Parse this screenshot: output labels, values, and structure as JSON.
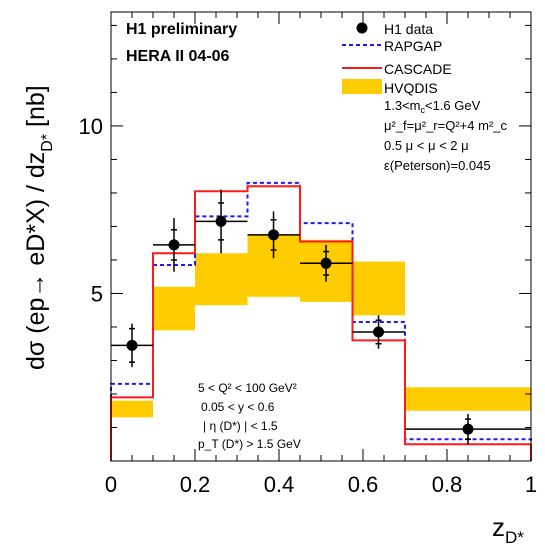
{
  "chart_data": {
    "type": "line",
    "xlabel_main": "z",
    "xlabel_sub": "D*",
    "ylabel_main": "dσ (ep→ eD*X) / dz",
    "ylabel_sub": "D*",
    "ylabel_unit": "[nb]",
    "xlim": [
      0,
      1
    ],
    "ylim": [
      0,
      13.4
    ],
    "x_major_ticks": [
      0,
      0.2,
      0.4,
      0.6,
      0.8,
      1
    ],
    "x_tick_labels": [
      "0",
      "0.2",
      "0.4",
      "0.6",
      "0.8",
      "1"
    ],
    "y_major_ticks": [
      5,
      10
    ],
    "y_tick_labels": [
      "5",
      "10"
    ],
    "bin_edges": [
      0,
      0.1,
      0.2,
      0.325,
      0.45,
      0.575,
      0.7,
      1.0
    ],
    "h1_data": [
      {
        "x": 0.05,
        "y": 3.45,
        "err_stat": 0.5,
        "err_tot": 0.65
      },
      {
        "x": 0.15,
        "y": 6.45,
        "err_stat": 0.45,
        "err_tot": 0.8
      },
      {
        "x": 0.262,
        "y": 7.15,
        "err_stat": 0.55,
        "err_tot": 0.95
      },
      {
        "x": 0.387,
        "y": 6.75,
        "err_stat": 0.45,
        "err_tot": 0.7
      },
      {
        "x": 0.512,
        "y": 5.9,
        "err_stat": 0.35,
        "err_tot": 0.55
      },
      {
        "x": 0.637,
        "y": 3.85,
        "err_stat": 0.35,
        "err_tot": 0.5
      },
      {
        "x": 0.85,
        "y": 0.95,
        "err_stat": 0.3,
        "err_tot": 0.45
      }
    ],
    "rapgap": [
      2.3,
      5.85,
      7.3,
      8.3,
      7.1,
      4.15,
      0.65
    ],
    "cascade": [
      1.9,
      6.2,
      8.05,
      8.2,
      6.55,
      3.6,
      0.5
    ],
    "hvqdis_low": [
      1.3,
      3.9,
      4.65,
      4.9,
      4.75,
      4.35,
      1.5
    ],
    "hvqdis_high": [
      1.8,
      5.2,
      6.2,
      6.75,
      6.6,
      5.95,
      2.2
    ],
    "legend": [
      {
        "label": "H1 data",
        "style": "marker"
      },
      {
        "label": "RAPGAP",
        "style": "dashed-blue"
      },
      {
        "label": "CASCADE",
        "style": "solid-red"
      },
      {
        "label": "HVQDIS",
        "style": "band-yellow"
      }
    ],
    "header_lines": [
      "H1 preliminary",
      "HERA II 04-06"
    ],
    "params": [
      {
        "main": "1.3<m",
        "sub": "c",
        "after": "<1.6 GeV"
      },
      {
        "text": "μ²_f=μ²_r=Q²+4 m²_c"
      },
      {
        "text": "0.5 μ < μ < 2 μ"
      },
      {
        "text": "ε(Peterson)=0.045"
      }
    ],
    "cuts": [
      "5 < Q² < 100 GeV²",
      "0.05 < y < 0.6",
      "| η (D*) | < 1.5",
      "p_T (D*) > 1.5 GeV"
    ],
    "colors": {
      "rapgap": "#1a1aff",
      "cascade": "#ff1a1a",
      "hvqdis": "#ffcc00",
      "data": "#000000"
    },
    "legend_position": "top-right"
  }
}
